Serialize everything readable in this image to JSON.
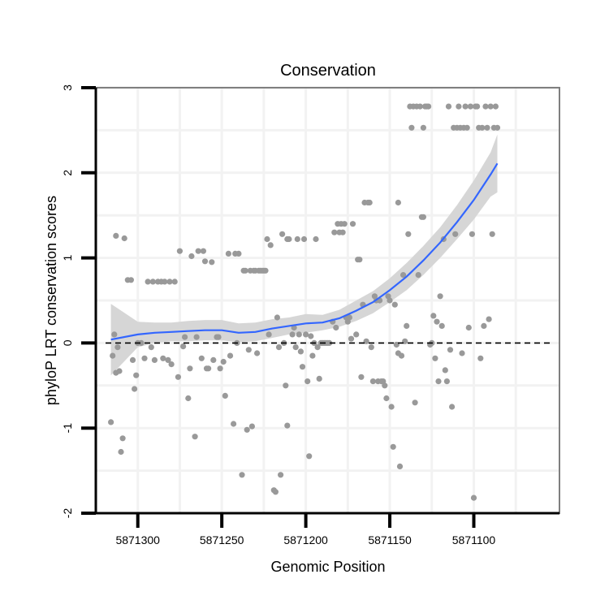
{
  "chart_data": {
    "type": "scatter",
    "title": "Conservation",
    "xlabel": "Genomic Position",
    "ylabel": "phyloP LRT conservation scores",
    "x_reversed": true,
    "xlim": [
      5871325,
      5871049
    ],
    "ylim": [
      -2,
      3
    ],
    "x_ticks": [
      5871300,
      5871250,
      5871200,
      5871150,
      5871100
    ],
    "y_ticks": [
      -2,
      -1,
      0,
      1,
      2,
      3
    ],
    "x_tick_labels": [
      "5871300",
      "5871250",
      "5871200",
      "5871150",
      "5871100"
    ],
    "y_tick_labels": [
      "-2",
      "-1",
      "0",
      "1",
      "2",
      "3"
    ],
    "reference_line": {
      "y": 0,
      "style": "dashed"
    },
    "colors": {
      "points": "#999999",
      "smooth": "#3366ff",
      "band": "#d4d4d4",
      "grid": "#f2f2f2",
      "border": "#7f7f7f",
      "refline": "#000000"
    },
    "series": [
      {
        "name": "scores",
        "points": [
          [
            5871316,
            -0.93
          ],
          [
            5871315,
            -0.15
          ],
          [
            5871314,
            0.1
          ],
          [
            5871313,
            -0.35
          ],
          [
            5871313,
            1.26
          ],
          [
            5871312,
            -0.05
          ],
          [
            5871311,
            -0.33
          ],
          [
            5871310,
            -1.28
          ],
          [
            5871309,
            -1.12
          ],
          [
            5871308,
            1.23
          ],
          [
            5871306,
            0.74
          ],
          [
            5871304,
            0.74
          ],
          [
            5871303,
            -0.2
          ],
          [
            5871302,
            -0.54
          ],
          [
            5871301,
            -0.38
          ],
          [
            5871300,
            0.0
          ],
          [
            5871298,
            0.0
          ],
          [
            5871296,
            -0.18
          ],
          [
            5871294,
            0.72
          ],
          [
            5871292,
            -0.05
          ],
          [
            5871291,
            0.72
          ],
          [
            5871290,
            -0.2
          ],
          [
            5871288,
            0.72
          ],
          [
            5871286,
            0.72
          ],
          [
            5871285,
            -0.18
          ],
          [
            5871284,
            0.72
          ],
          [
            5871282,
            -0.2
          ],
          [
            5871281,
            0.72
          ],
          [
            5871280,
            -0.25
          ],
          [
            5871278,
            0.72
          ],
          [
            5871276,
            -0.4
          ],
          [
            5871275,
            1.08
          ],
          [
            5871273,
            -0.04
          ],
          [
            5871272,
            0.07
          ],
          [
            5871270,
            -0.65
          ],
          [
            5871269,
            -0.3
          ],
          [
            5871268,
            1.02
          ],
          [
            5871266,
            -1.1
          ],
          [
            5871265,
            0.07
          ],
          [
            5871264,
            1.08
          ],
          [
            5871262,
            -0.18
          ],
          [
            5871261,
            1.08
          ],
          [
            5871260,
            0.96
          ],
          [
            5871259,
            -0.3
          ],
          [
            5871258,
            -0.3
          ],
          [
            5871256,
            0.95
          ],
          [
            5871255,
            -0.2
          ],
          [
            5871253,
            0.07
          ],
          [
            5871252,
            0.07
          ],
          [
            5871251,
            -0.3
          ],
          [
            5871249,
            -0.22
          ],
          [
            5871248,
            -0.62
          ],
          [
            5871246,
            1.05
          ],
          [
            5871245,
            -0.15
          ],
          [
            5871243,
            -0.95
          ],
          [
            5871242,
            1.05
          ],
          [
            5871241,
            0.0
          ],
          [
            5871240,
            1.05
          ],
          [
            5871238,
            -1.55
          ],
          [
            5871237,
            0.85
          ],
          [
            5871236,
            0.85
          ],
          [
            5871235,
            -1.02
          ],
          [
            5871234,
            -0.08
          ],
          [
            5871233,
            0.85
          ],
          [
            5871232,
            -0.98
          ],
          [
            5871231,
            0.85
          ],
          [
            5871230,
            0.85
          ],
          [
            5871229,
            -0.12
          ],
          [
            5871228,
            0.85
          ],
          [
            5871227,
            0.85
          ],
          [
            5871226,
            0.85
          ],
          [
            5871225,
            0.85
          ],
          [
            5871224,
            0.85
          ],
          [
            5871223,
            1.22
          ],
          [
            5871222,
            0.1
          ],
          [
            5871221,
            1.15
          ],
          [
            5871219,
            -1.73
          ],
          [
            5871218,
            -1.75
          ],
          [
            5871217,
            0.3
          ],
          [
            5871216,
            -0.05
          ],
          [
            5871215,
            -1.55
          ],
          [
            5871214,
            1.28
          ],
          [
            5871213,
            0.0
          ],
          [
            5871212,
            -0.5
          ],
          [
            5871211,
            -0.97
          ],
          [
            5871211,
            1.22
          ],
          [
            5871210,
            1.22
          ],
          [
            5871208,
            0.1
          ],
          [
            5871207,
            0.18
          ],
          [
            5871206,
            -0.05
          ],
          [
            5871205,
            1.22
          ],
          [
            5871204,
            0.1
          ],
          [
            5871203,
            -0.1
          ],
          [
            5871202,
            -0.28
          ],
          [
            5871201,
            1.22
          ],
          [
            5871200,
            0.1
          ],
          [
            5871199,
            -0.45
          ],
          [
            5871198,
            -1.33
          ],
          [
            5871197,
            0.08
          ],
          [
            5871196,
            -0.15
          ],
          [
            5871195,
            0.0
          ],
          [
            5871194,
            1.22
          ],
          [
            5871193,
            -0.05
          ],
          [
            5871192,
            -0.42
          ],
          [
            5871191,
            0.0
          ],
          [
            5871190,
            0.0
          ],
          [
            5871189,
            0.0
          ],
          [
            5871188,
            0.0
          ],
          [
            5871187,
            0.0
          ],
          [
            5871186,
            0.0
          ],
          [
            5871184,
            0.25
          ],
          [
            5871183,
            1.3
          ],
          [
            5871182,
            0.18
          ],
          [
            5871181,
            1.4
          ],
          [
            5871180,
            1.3
          ],
          [
            5871179,
            1.4
          ],
          [
            5871178,
            1.3
          ],
          [
            5871177,
            1.4
          ],
          [
            5871176,
            0.3
          ],
          [
            5871175,
            0.25
          ],
          [
            5871174,
            0.3
          ],
          [
            5871173,
            0.05
          ],
          [
            5871172,
            1.4
          ],
          [
            5871170,
            0.1
          ],
          [
            5871169,
            0.98
          ],
          [
            5871168,
            0.98
          ],
          [
            5871167,
            -0.4
          ],
          [
            5871166,
            0.45
          ],
          [
            5871165,
            1.65
          ],
          [
            5871164,
            0.02
          ],
          [
            5871163,
            1.65
          ],
          [
            5871162,
            1.65
          ],
          [
            5871161,
            -0.05
          ],
          [
            5871160,
            -0.45
          ],
          [
            5871159,
            0.55
          ],
          [
            5871158,
            0.5
          ],
          [
            5871157,
            -0.45
          ],
          [
            5871156,
            0.5
          ],
          [
            5871155,
            -0.45
          ],
          [
            5871154,
            -0.45
          ],
          [
            5871153,
            -0.5
          ],
          [
            5871152,
            -0.65
          ],
          [
            5871151,
            0.55
          ],
          [
            5871150,
            0.5
          ],
          [
            5871149,
            -0.75
          ],
          [
            5871148,
            -1.22
          ],
          [
            5871147,
            0.45
          ],
          [
            5871146,
            -0.02
          ],
          [
            5871145,
            -0.12
          ],
          [
            5871145,
            1.65
          ],
          [
            5871144,
            -1.45
          ],
          [
            5871143,
            -0.15
          ],
          [
            5871142,
            0.8
          ],
          [
            5871141,
            0.02
          ],
          [
            5871140,
            0.2
          ],
          [
            5871139,
            1.28
          ],
          [
            5871138,
            2.78
          ],
          [
            5871137,
            2.53
          ],
          [
            5871136,
            2.78
          ],
          [
            5871135,
            -0.7
          ],
          [
            5871134,
            2.78
          ],
          [
            5871133,
            0.8
          ],
          [
            5871132,
            2.78
          ],
          [
            5871131,
            1.48
          ],
          [
            5871130,
            2.53
          ],
          [
            5871130,
            1.48
          ],
          [
            5871129,
            2.78
          ],
          [
            5871128,
            2.78
          ],
          [
            5871127,
            2.78
          ],
          [
            5871126,
            -0.02
          ],
          [
            5871125,
            0.0
          ],
          [
            5871124,
            0.32
          ],
          [
            5871123,
            -0.18
          ],
          [
            5871122,
            0.25
          ],
          [
            5871121,
            -0.45
          ],
          [
            5871120,
            0.55
          ],
          [
            5871119,
            0.2
          ],
          [
            5871118,
            1.22
          ],
          [
            5871117,
            -0.32
          ],
          [
            5871116,
            -0.45
          ],
          [
            5871115,
            2.78
          ],
          [
            5871114,
            -0.08
          ],
          [
            5871113,
            -0.75
          ],
          [
            5871112,
            2.53
          ],
          [
            5871111,
            1.28
          ],
          [
            5871110,
            2.53
          ],
          [
            5871109,
            2.78
          ],
          [
            5871108,
            2.53
          ],
          [
            5871107,
            -0.12
          ],
          [
            5871106,
            2.53
          ],
          [
            5871105,
            2.78
          ],
          [
            5871104,
            2.53
          ],
          [
            5871103,
            0.18
          ],
          [
            5871102,
            2.78
          ],
          [
            5871101,
            1.28
          ],
          [
            5871100,
            -1.82
          ],
          [
            5871099,
            2.78
          ],
          [
            5871098,
            2.78
          ],
          [
            5871097,
            2.53
          ],
          [
            5871096,
            -0.18
          ],
          [
            5871095,
            2.53
          ],
          [
            5871094,
            0.2
          ],
          [
            5871093,
            2.78
          ],
          [
            5871092,
            2.53
          ],
          [
            5871091,
            0.28
          ],
          [
            5871090,
            2.78
          ],
          [
            5871089,
            1.28
          ],
          [
            5871088,
            2.53
          ],
          [
            5871087,
            2.78
          ],
          [
            5871086,
            2.53
          ]
        ]
      }
    ],
    "smooth": {
      "x": [
        5871316,
        5871300,
        5871290,
        5871280,
        5871270,
        5871260,
        5871250,
        5871240,
        5871230,
        5871220,
        5871210,
        5871200,
        5871190,
        5871180,
        5871170,
        5871160,
        5871150,
        5871140,
        5871130,
        5871120,
        5871110,
        5871100,
        5871090,
        5871086
      ],
      "y": [
        0.04,
        0.1,
        0.12,
        0.13,
        0.14,
        0.15,
        0.15,
        0.12,
        0.13,
        0.17,
        0.2,
        0.23,
        0.24,
        0.29,
        0.38,
        0.48,
        0.62,
        0.78,
        0.97,
        1.18,
        1.42,
        1.68,
        1.98,
        2.11
      ],
      "lower": [
        -0.38,
        -0.05,
        0.0,
        0.02,
        0.02,
        0.03,
        0.03,
        0.01,
        0.02,
        0.06,
        0.1,
        0.12,
        0.15,
        0.19,
        0.26,
        0.35,
        0.48,
        0.62,
        0.8,
        1.0,
        1.22,
        1.45,
        1.72,
        1.77
      ],
      "upper": [
        0.46,
        0.25,
        0.24,
        0.24,
        0.26,
        0.27,
        0.27,
        0.23,
        0.24,
        0.28,
        0.3,
        0.34,
        0.33,
        0.39,
        0.5,
        0.61,
        0.76,
        0.94,
        1.14,
        1.36,
        1.62,
        1.91,
        2.24,
        2.45
      ]
    }
  }
}
